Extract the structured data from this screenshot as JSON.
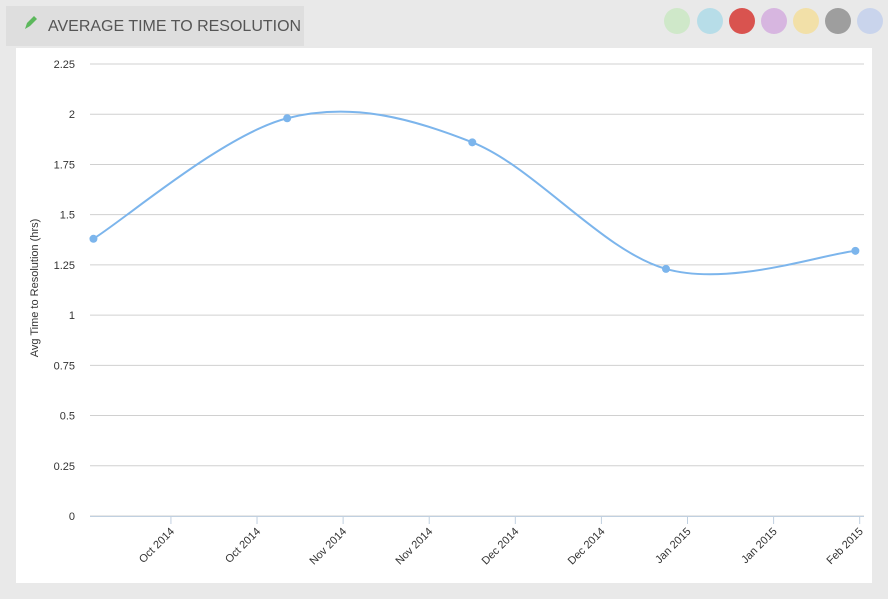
{
  "chart_data": {
    "type": "line",
    "title": "AVERAGE TIME TO RESOLUTION",
    "y_label": "Avg Time to Resolution (hrs)",
    "x": [
      0.1,
      2.35,
      4.5,
      6.75,
      8.95
    ],
    "series": [
      {
        "color": "#7cb5ec",
        "values": [
          1.38,
          1.98,
          1.86,
          1.23,
          1.32
        ]
      }
    ],
    "xlim": [
      0.06,
      9.05
    ],
    "xticks": [
      {
        "value": 1,
        "label": "Oct 2014"
      },
      {
        "value": 2,
        "label": "Oct 2014"
      },
      {
        "value": 3,
        "label": "Nov 2014"
      },
      {
        "value": 4,
        "label": "Nov 2014"
      },
      {
        "value": 5,
        "label": "Dec 2014"
      },
      {
        "value": 6,
        "label": "Dec 2014"
      },
      {
        "value": 7,
        "label": "Jan 2015"
      },
      {
        "value": 8,
        "label": "Jan 2015"
      },
      {
        "value": 9,
        "label": "Feb 2015"
      }
    ],
    "ylim": [
      0,
      2.25
    ],
    "yticks": [
      0,
      0.25,
      0.5,
      0.75,
      1,
      1.25,
      1.5,
      1.75,
      2,
      2.25
    ],
    "grid": true
  }
}
